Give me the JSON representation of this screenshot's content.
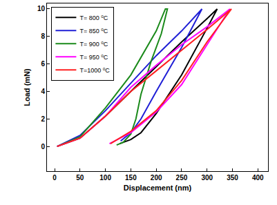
{
  "chart_data": {
    "type": "line",
    "x_label": "Displacement (nm)",
    "y_label": "Load (mN)",
    "xlim": [
      -15,
      420
    ],
    "xticks": [
      0,
      50,
      100,
      150,
      200,
      250,
      300,
      350,
      400
    ],
    "ylim": [
      -1.8,
      10.4
    ],
    "yticks": [
      0,
      2,
      4,
      6,
      8,
      10
    ],
    "grid": false,
    "legend": "top-left",
    "series": [
      {
        "name": "T= 800 ⁰C",
        "color": "#000000",
        "x": [
          5,
          50,
          100,
          150,
          200,
          250,
          300,
          320,
          300,
          250,
          200,
          170,
          150,
          128
        ],
        "values": [
          0,
          0.6,
          2.2,
          4.0,
          5.8,
          7.6,
          9.3,
          10,
          8.6,
          5.2,
          2.4,
          1.0,
          0.5,
          0.2
        ]
      },
      {
        "name": "T= 850 ⁰C",
        "color": "#1f1fd6",
        "x": [
          5,
          50,
          100,
          150,
          200,
          250,
          290,
          250,
          200,
          170,
          150,
          130
        ],
        "values": [
          0,
          0.8,
          2.6,
          4.6,
          6.6,
          8.4,
          10,
          7.2,
          4.0,
          2.0,
          1.0,
          0.4
        ]
      },
      {
        "name": "T= 900 ⁰C",
        "color": "#1a8a1a",
        "x": [
          5,
          50,
          100,
          150,
          200,
          218,
          222,
          210,
          190,
          170,
          160,
          150,
          135,
          122
        ],
        "values": [
          0,
          0.7,
          2.8,
          5.2,
          8.4,
          10,
          10,
          8.2,
          6.2,
          3.8,
          2.0,
          0.9,
          0.3,
          0.1
        ]
      },
      {
        "name": "T= 950 ⁰C",
        "color": "#ff00ff",
        "x": [
          5,
          50,
          100,
          150,
          200,
          250,
          300,
          345,
          300,
          250,
          200,
          150,
          108
        ],
        "values": [
          0,
          0.6,
          2.2,
          4.3,
          5.9,
          7.4,
          8.7,
          10,
          7.4,
          4.5,
          2.5,
          1.0,
          0.2
        ]
      },
      {
        "name": "T=1000 ⁰C",
        "color": "#ff2020",
        "x": [
          5,
          50,
          100,
          150,
          200,
          250,
          300,
          348,
          300,
          250,
          200,
          150,
          110
        ],
        "values": [
          0,
          0.6,
          2.2,
          4.0,
          5.5,
          7.0,
          8.5,
          10,
          7.6,
          4.8,
          2.6,
          1.1,
          0.2
        ]
      }
    ]
  }
}
